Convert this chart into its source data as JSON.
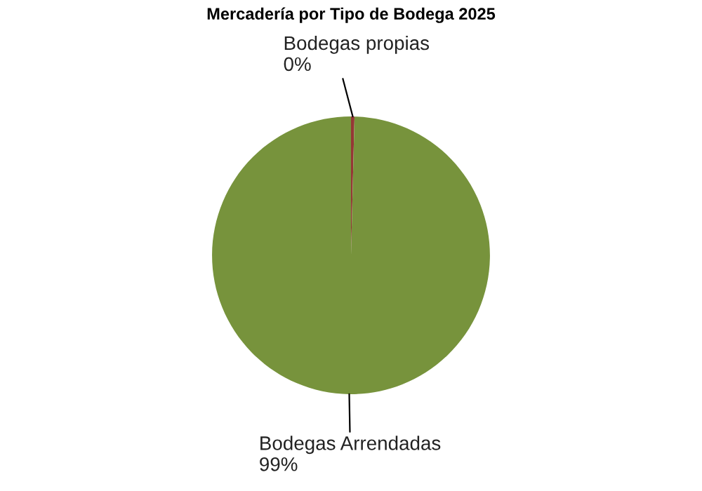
{
  "chart_data": {
    "type": "pie",
    "title": "Mercadería por Tipo de Bodega 2025",
    "categories": [
      "Bodegas propias",
      "Bodegas Arrendadas"
    ],
    "values": [
      0.4,
      99
    ],
    "value_labels": [
      "0%",
      "99%"
    ],
    "colors": [
      "#953735",
      "#77933c"
    ]
  }
}
